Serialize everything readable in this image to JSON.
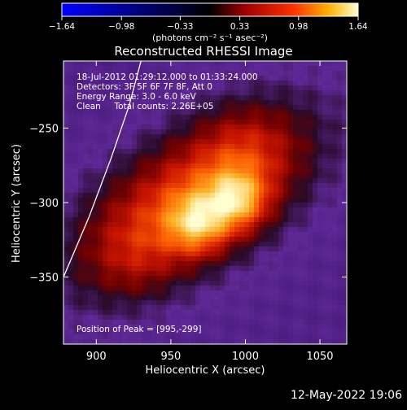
{
  "chart_data": {
    "type": "heatmap",
    "title": "Reconstructed RHESSI Image",
    "xlabel": "Heliocentric X (arcsec)",
    "ylabel": "Heliocentric Y (arcsec)",
    "xlim": [
      878,
      1068
    ],
    "ylim": [
      -395,
      -205
    ],
    "x_ticks": [
      {
        "value": 900,
        "label": "900"
      },
      {
        "value": 950,
        "label": "950"
      },
      {
        "value": 1000,
        "label": "1000"
      },
      {
        "value": 1050,
        "label": "1050"
      }
    ],
    "y_ticks": [
      {
        "value": -250,
        "label": "−250"
      },
      {
        "value": -300,
        "label": "−300"
      },
      {
        "value": -350,
        "label": "−350"
      }
    ],
    "colorbar": {
      "range": [
        -1.64,
        1.64
      ],
      "tick_labels": [
        "−1.64",
        "−0.98",
        "−0.33",
        "0.33",
        "0.98",
        "1.64"
      ],
      "unit_label": "(photons cm⁻² s⁻¹ asec⁻²)"
    },
    "annotations": [
      "18-Jul-2012 01:29:12.000 to 01:33:24.000",
      "Detectors: 3F 5F 6F 7F 8F, Att 0",
      "Energy Range: 3.0 - 6.0 keV",
      "Clean     Total counts: 2.26E+05"
    ],
    "peak_label": "Position of Peak = [995,-299]",
    "peaks": [
      {
        "x": 995,
        "y": -299,
        "amplitude": 1.0
      },
      {
        "x": 968,
        "y": -315,
        "amplitude": 0.93
      }
    ],
    "limb_curve": [
      [
        878,
        -350
      ],
      [
        895,
        -310
      ],
      [
        910,
        -270
      ],
      [
        922,
        -235
      ],
      [
        930,
        -205
      ]
    ],
    "colors": {
      "limb": "#ffffff",
      "background_purple": "#5b2a8c"
    }
  },
  "footer": {
    "date": "12-May-2022 19:06"
  }
}
